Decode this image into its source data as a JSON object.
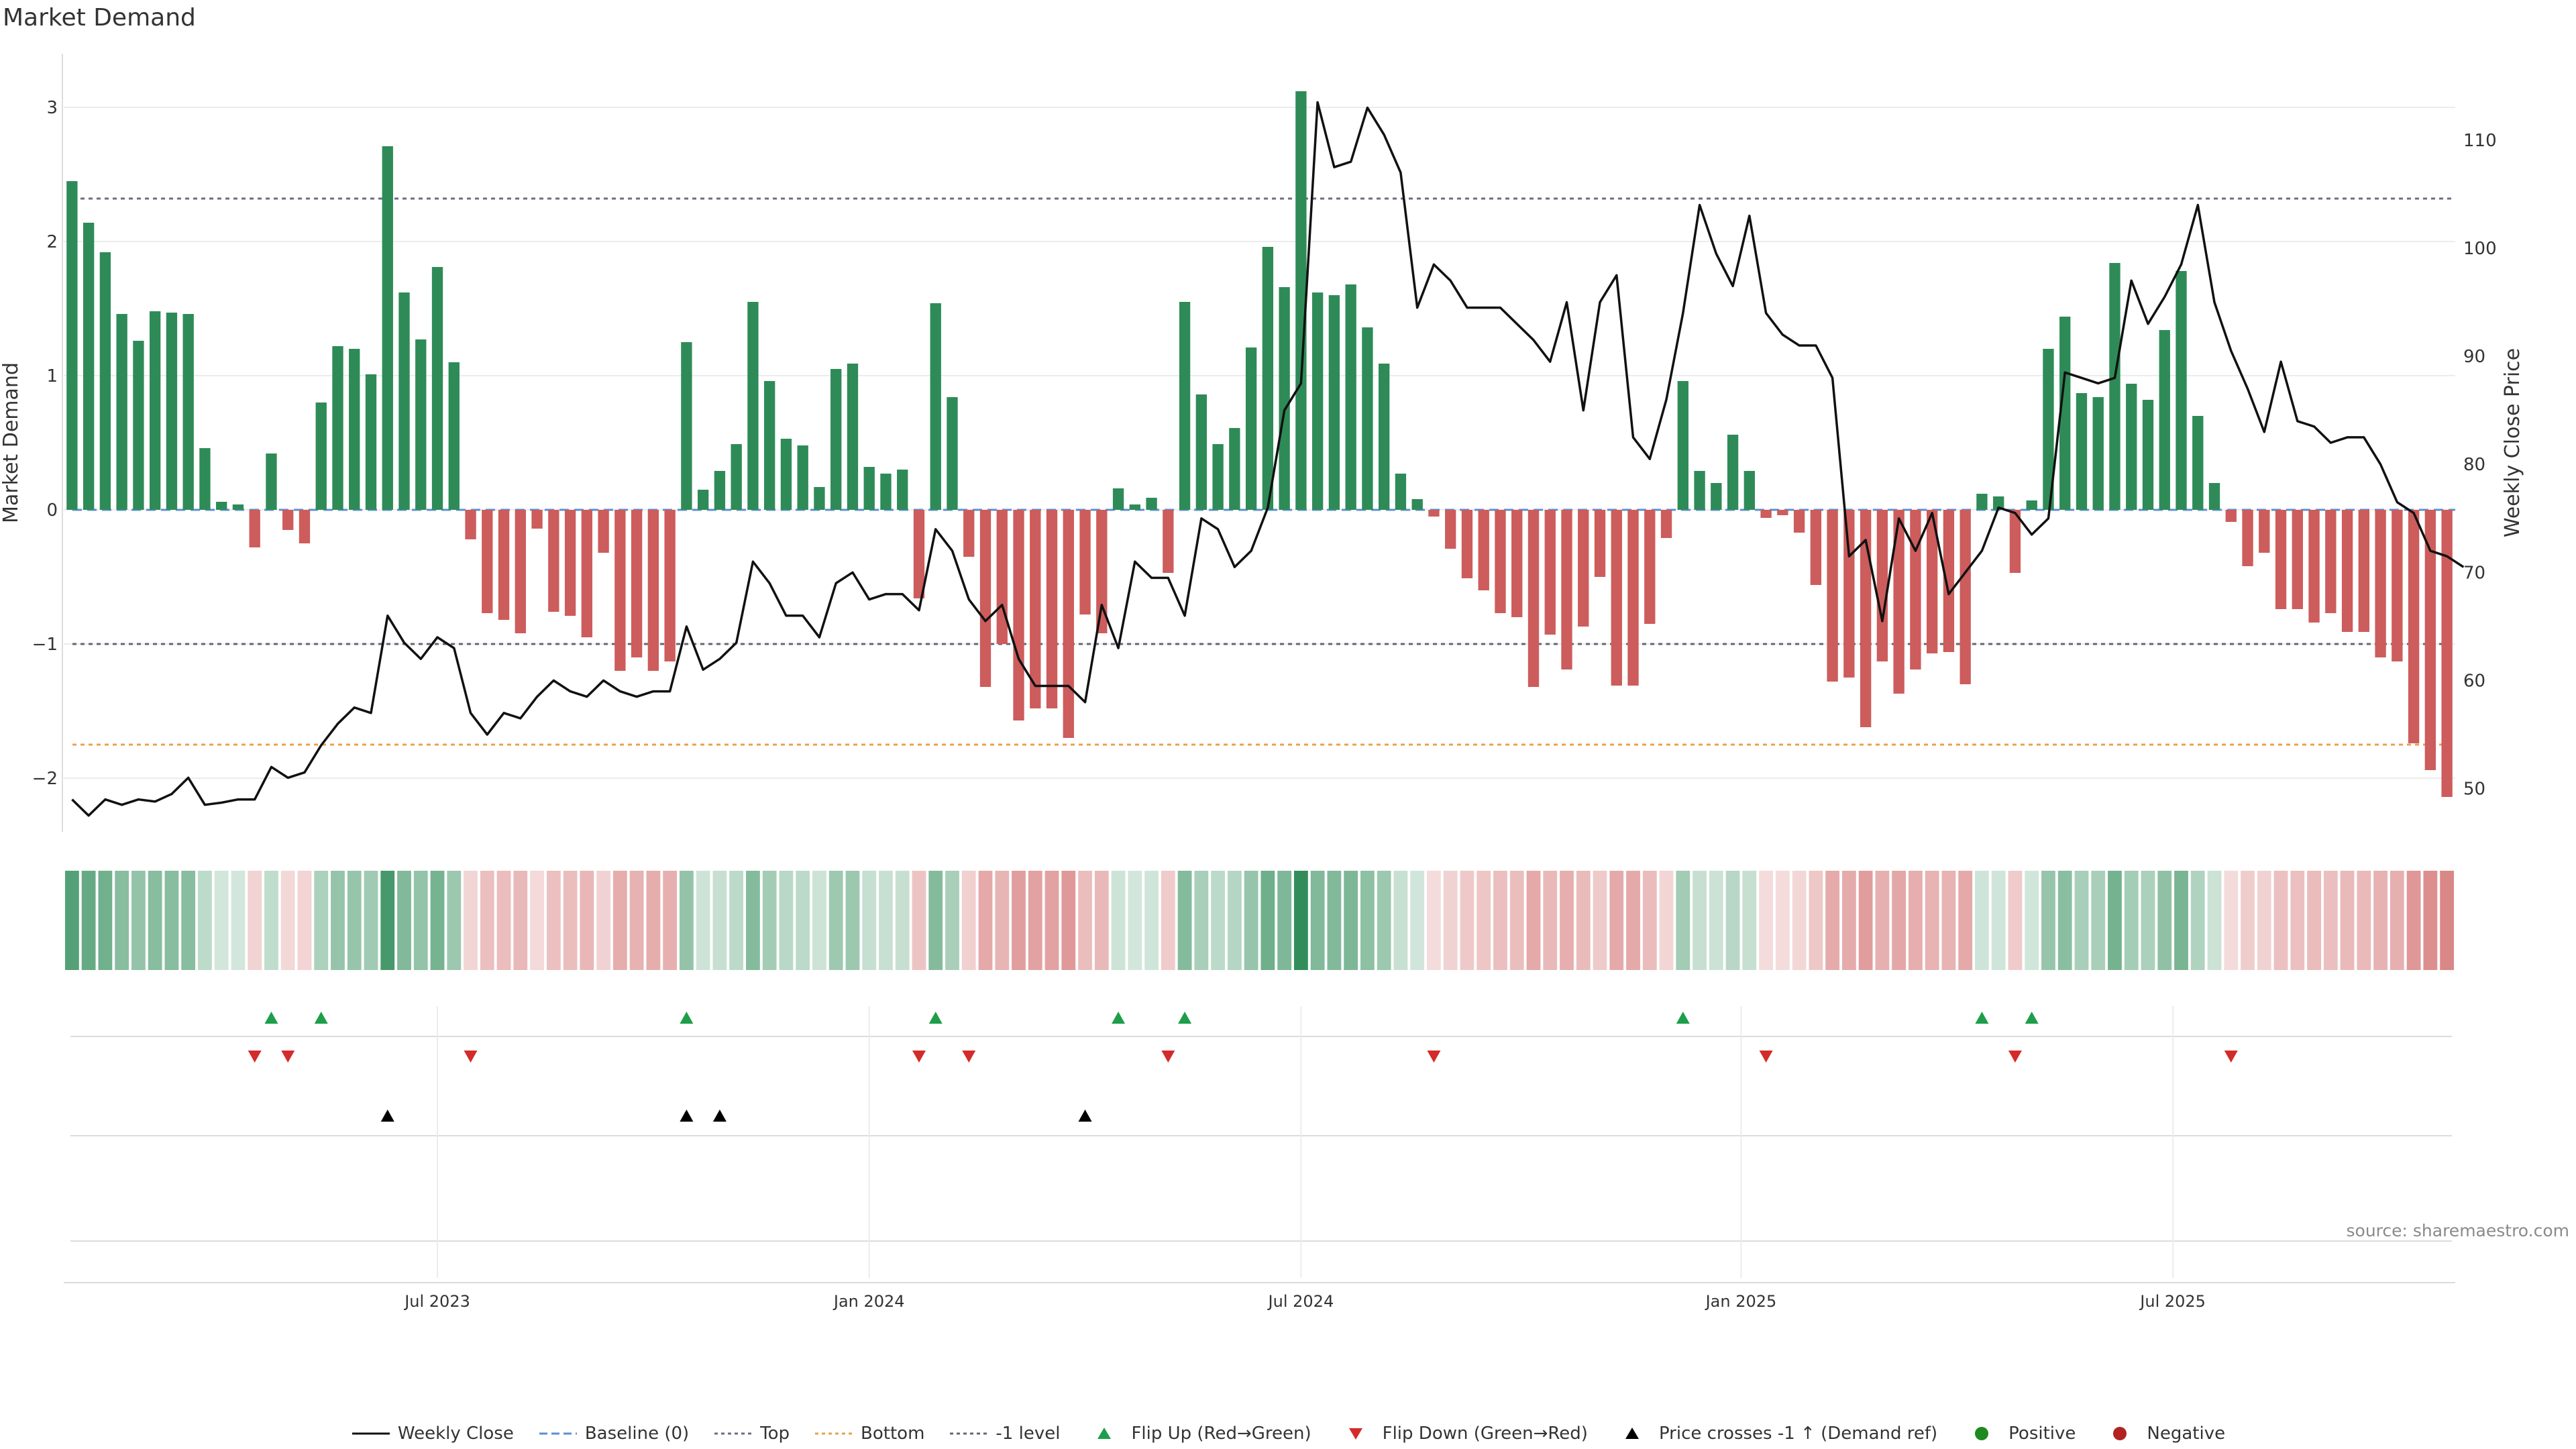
{
  "title": "Market Demand",
  "source": "source: sharemaestro.com",
  "colors": {
    "positive": "#2e8b57",
    "negative": "#cd5c5c",
    "price": "#111111",
    "baseline": "#5b8fd4",
    "top": "#6c6c8c",
    "bottom": "#e8a050",
    "minus1": "#666677",
    "flip_up": "#1e9e4a",
    "flip_down": "#d42a2a",
    "cross": "#000000",
    "pos_dot": "#1e8a1e",
    "neg_dot": "#b22222",
    "grid": "#ececec"
  },
  "legend": [
    {
      "label": "Weekly Close",
      "kind": "line-solid",
      "color": "#111111"
    },
    {
      "label": "Baseline (0)",
      "kind": "line-dash",
      "color": "#5b8fd4"
    },
    {
      "label": "Top",
      "kind": "line-dot",
      "color": "#6c6c8c"
    },
    {
      "label": "Bottom",
      "kind": "line-dot",
      "color": "#e8a050"
    },
    {
      "label": "-1 level",
      "kind": "line-dot",
      "color": "#666677"
    },
    {
      "label": "Flip Up (Red→Green)",
      "kind": "tri-up",
      "color": "#1e9e4a"
    },
    {
      "label": "Flip Down (Green→Red)",
      "kind": "tri-down",
      "color": "#d42a2a"
    },
    {
      "label": "Price crosses -1 ↑ (Demand ref)",
      "kind": "tri-up",
      "color": "#000000"
    },
    {
      "label": "Positive",
      "kind": "dot",
      "color": "#1e8a1e"
    },
    {
      "label": "Negative",
      "kind": "dot",
      "color": "#b22222"
    }
  ],
  "chart_data": {
    "type": "bar",
    "ylabel": "Market Demand",
    "y2label": "Weekly Close Price",
    "ylim": [
      -2.4,
      3.4
    ],
    "y2lim": [
      46,
      118
    ],
    "yticks": [
      "3",
      "2",
      "1",
      "0",
      "−1",
      "−2"
    ],
    "y2ticks": [
      "110",
      "100",
      "90",
      "80",
      "70",
      "60",
      "50"
    ],
    "xtick_labels": [
      "Jul 2023",
      "Jan 2024",
      "Jul 2024",
      "Jan 2025",
      "Jul 2025"
    ],
    "xtick_index": [
      22,
      48,
      74,
      100.5,
      126.5
    ],
    "levels": {
      "baseline": 0,
      "top": 2.32,
      "bottom": -1.75,
      "minus1": -1
    },
    "demand": [
      2.45,
      2.14,
      1.92,
      1.46,
      1.26,
      1.48,
      1.47,
      1.46,
      0.46,
      0.06,
      0.04,
      -0.28,
      0.42,
      -0.15,
      -0.25,
      0.8,
      1.22,
      1.2,
      1.01,
      2.71,
      1.62,
      1.27,
      1.81,
      1.1,
      -0.22,
      -0.77,
      -0.82,
      -0.92,
      -0.14,
      -0.76,
      -0.79,
      -0.95,
      -0.32,
      -1.2,
      -1.1,
      -1.2,
      -1.13,
      1.25,
      0.15,
      0.29,
      0.49,
      1.55,
      0.96,
      0.53,
      0.48,
      0.17,
      1.05,
      1.09,
      0.32,
      0.27,
      0.3,
      -0.66,
      1.54,
      0.84,
      -0.35,
      -1.32,
      -1.0,
      -1.57,
      -1.48,
      -1.48,
      -1.7,
      -0.78,
      -0.92,
      0.16,
      0.04,
      0.09,
      -0.47,
      1.55,
      0.86,
      0.49,
      0.61,
      1.21,
      1.96,
      1.66,
      3.12,
      1.62,
      1.6,
      1.68,
      1.36,
      1.09,
      0.27,
      0.08,
      -0.05,
      -0.29,
      -0.51,
      -0.6,
      -0.77,
      -0.8,
      -1.32,
      -0.93,
      -1.19,
      -0.87,
      -0.5,
      -1.31,
      -1.31,
      -0.85,
      -0.21,
      0.96,
      0.29,
      0.2,
      0.56,
      0.29,
      -0.06,
      -0.04,
      -0.17,
      -0.56,
      -1.28,
      -1.25,
      -1.62,
      -1.13,
      -1.37,
      -1.19,
      -1.07,
      -1.06,
      -1.3,
      0.12,
      0.1,
      -0.47,
      0.07,
      1.2,
      1.44,
      0.87,
      0.84,
      1.84,
      0.94,
      0.82,
      1.34,
      1.78,
      0.7,
      0.2,
      -0.09,
      -0.42,
      -0.32,
      -0.74,
      -0.74,
      -0.84,
      -0.77,
      -0.91,
      -0.91,
      -1.1,
      -1.13,
      -1.74,
      -1.94,
      -2.14
    ],
    "price": [
      49,
      47.5,
      49,
      48.5,
      49,
      48.8,
      49.5,
      51,
      48.5,
      48.7,
      49,
      49,
      52,
      51,
      51.5,
      54,
      56,
      57.5,
      57,
      66,
      63.5,
      62,
      64,
      63,
      57,
      55,
      57,
      56.5,
      58.5,
      60,
      59,
      58.5,
      60,
      59,
      58.5,
      59,
      59,
      65,
      61,
      62,
      63.5,
      71,
      69,
      66,
      66,
      64,
      69,
      70,
      67.5,
      68,
      68,
      66.5,
      74,
      72,
      67.5,
      65.5,
      67,
      62,
      59.5,
      59.5,
      59.5,
      58,
      67,
      63,
      71,
      69.5,
      69.5,
      66,
      75,
      74,
      70.5,
      72,
      76,
      85,
      87.5,
      113.5,
      107.5,
      108,
      113,
      110.5,
      107,
      94.5,
      98.5,
      97,
      94.5,
      94.5,
      94.5,
      93,
      91.5,
      89.5,
      95,
      85,
      95,
      97.5,
      82.5,
      80.5,
      86,
      94,
      104,
      99.5,
      96.5,
      103,
      94,
      92,
      91,
      91,
      88,
      71.5,
      73,
      65.5,
      75,
      72,
      75.5,
      68,
      70,
      72,
      76,
      75.5,
      73.5,
      75,
      88.5,
      88,
      87.5,
      88,
      97,
      93,
      95.5,
      98.5,
      104,
      95,
      90.5,
      87,
      83,
      89.5,
      84,
      83.5,
      82,
      82.5,
      82.5,
      80,
      76.5,
      75.5,
      72,
      71.5,
      70.5
    ],
    "flip_up": [
      12,
      15,
      37,
      52,
      63,
      67,
      97,
      115,
      118
    ],
    "flip_down": [
      11,
      13,
      24,
      51,
      54,
      66,
      82,
      102,
      117,
      130
    ],
    "cross": [
      19,
      37,
      39,
      61
    ]
  }
}
